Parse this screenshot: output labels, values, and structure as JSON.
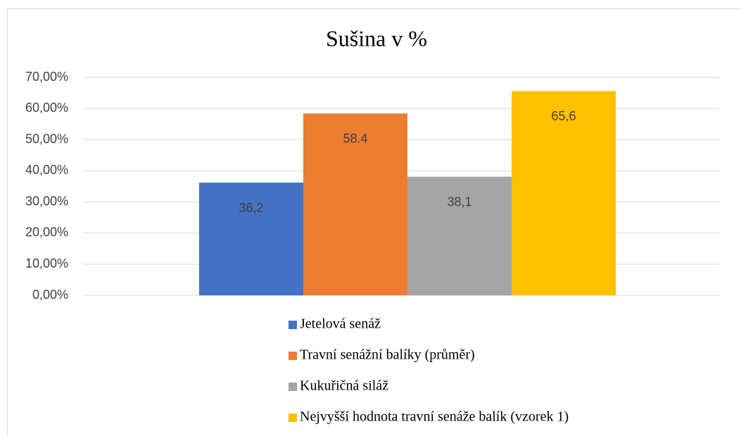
{
  "chart_data": {
    "type": "bar",
    "title": "Sušina v %",
    "categories": [
      null
    ],
    "series": [
      {
        "name": "Jetelová senáž",
        "color": "#4472c4",
        "values": [
          36.2
        ],
        "value_labels": [
          "36,2"
        ]
      },
      {
        "name": "Travní senážní balíky (průměr)",
        "color": "#ed7d31",
        "values": [
          58.4
        ],
        "value_labels": [
          "58.4"
        ]
      },
      {
        "name": "Kukuřičná siláž",
        "color": "#a5a5a5",
        "values": [
          38.1
        ],
        "value_labels": [
          "38,1"
        ]
      },
      {
        "name": "Nejvyšší hodnota travní senáže balík (vzorek 1)",
        "color": "#ffc000",
        "values": [
          65.6
        ],
        "value_labels": [
          "65,6"
        ]
      }
    ],
    "ylim": [
      0,
      70
    ],
    "yticks": [
      {
        "value": 0,
        "label": "0,00%"
      },
      {
        "value": 10,
        "label": "10,00%"
      },
      {
        "value": 20,
        "label": "20,00%"
      },
      {
        "value": 30,
        "label": "30,00%"
      },
      {
        "value": 40,
        "label": "40,00%"
      },
      {
        "value": 50,
        "label": "50,00%"
      },
      {
        "value": 60,
        "label": "60,00%"
      },
      {
        "value": 70,
        "label": "70,00%"
      }
    ],
    "grid": true,
    "legend": "bottom"
  }
}
